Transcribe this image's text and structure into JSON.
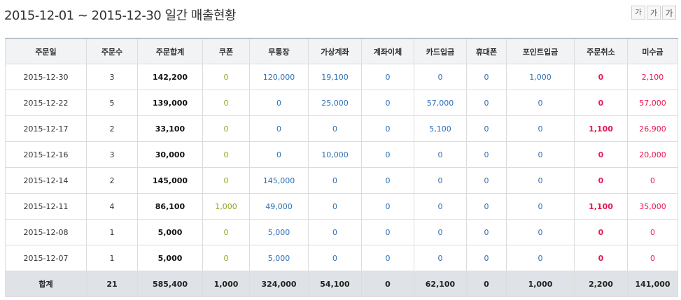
{
  "title": "2015-12-01 ~ 2015-12-30 일간 매출현황",
  "font_buttons": [
    "가",
    "가",
    "가"
  ],
  "columns": [
    "주문일",
    "주문수",
    "주문합계",
    "쿠폰",
    "무통장",
    "가상계좌",
    "계좌이체",
    "카드입금",
    "휴대폰",
    "포인트입금",
    "주문취소",
    "미수금"
  ],
  "rows": [
    {
      "date": "2015-12-30",
      "count": "3",
      "total": "142,200",
      "coupon": "0",
      "bank": "120,000",
      "virtual": "19,100",
      "transfer": "0",
      "card": "0",
      "phone": "0",
      "point": "1,000",
      "cancel": "0",
      "unpaid": "2,100"
    },
    {
      "date": "2015-12-22",
      "count": "5",
      "total": "139,000",
      "coupon": "0",
      "bank": "0",
      "virtual": "25,000",
      "transfer": "0",
      "card": "57,000",
      "phone": "0",
      "point": "0",
      "cancel": "0",
      "unpaid": "57,000"
    },
    {
      "date": "2015-12-17",
      "count": "2",
      "total": "33,100",
      "coupon": "0",
      "bank": "0",
      "virtual": "0",
      "transfer": "0",
      "card": "5,100",
      "phone": "0",
      "point": "0",
      "cancel": "1,100",
      "unpaid": "26,900"
    },
    {
      "date": "2015-12-16",
      "count": "3",
      "total": "30,000",
      "coupon": "0",
      "bank": "0",
      "virtual": "10,000",
      "transfer": "0",
      "card": "0",
      "phone": "0",
      "point": "0",
      "cancel": "0",
      "unpaid": "20,000"
    },
    {
      "date": "2015-12-14",
      "count": "2",
      "total": "145,000",
      "coupon": "0",
      "bank": "145,000",
      "virtual": "0",
      "transfer": "0",
      "card": "0",
      "phone": "0",
      "point": "0",
      "cancel": "0",
      "unpaid": "0"
    },
    {
      "date": "2015-12-11",
      "count": "4",
      "total": "86,100",
      "coupon": "1,000",
      "bank": "49,000",
      "virtual": "0",
      "transfer": "0",
      "card": "0",
      "phone": "0",
      "point": "0",
      "cancel": "1,100",
      "unpaid": "35,000"
    },
    {
      "date": "2015-12-08",
      "count": "1",
      "total": "5,000",
      "coupon": "0",
      "bank": "5,000",
      "virtual": "0",
      "transfer": "0",
      "card": "0",
      "phone": "0",
      "point": "0",
      "cancel": "0",
      "unpaid": "0"
    },
    {
      "date": "2015-12-07",
      "count": "1",
      "total": "5,000",
      "coupon": "0",
      "bank": "5,000",
      "virtual": "0",
      "transfer": "0",
      "card": "0",
      "phone": "0",
      "point": "0",
      "cancel": "0",
      "unpaid": "0"
    }
  ],
  "totals": {
    "label": "합계",
    "count": "21",
    "total": "585,400",
    "coupon": "1,000",
    "bank": "324,000",
    "virtual": "54,100",
    "transfer": "0",
    "card": "62,100",
    "phone": "0",
    "point": "1,000",
    "cancel": "2,200",
    "unpaid": "141,000"
  },
  "colors": {
    "coupon": "#8aa61c",
    "payment": "#2b6fb7",
    "cancel": "#e8174f",
    "unpaid": "#e8174f",
    "header_bg": "#f2f3f5",
    "footer_bg": "#dfe3e7"
  }
}
